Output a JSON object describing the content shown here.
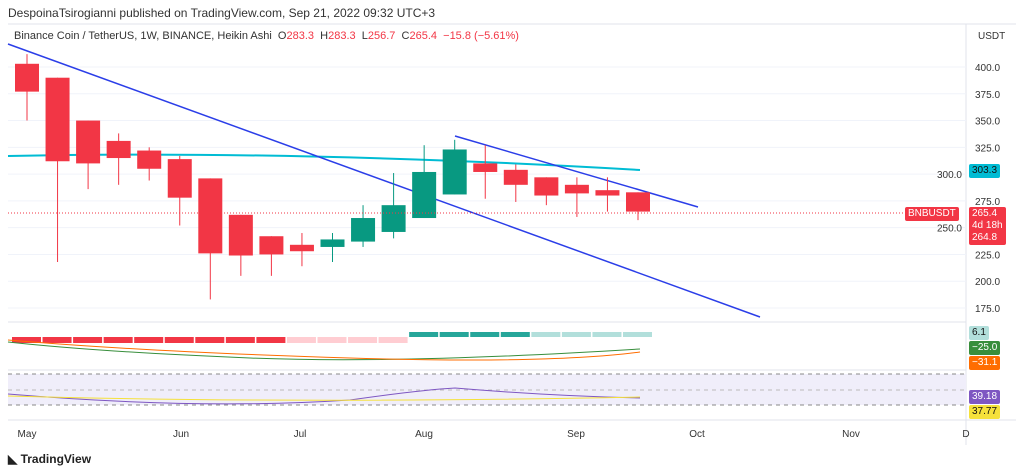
{
  "header": {
    "published": "DespoinaTsirogianni published on TradingView.com, Sep 21, 2022 09:32 UTC+3"
  },
  "legend": {
    "title": "Binance Coin / TetherUS, 1W, BINANCE, Heikin Ashi",
    "o_label": "O",
    "o": "283.3",
    "h_label": "H",
    "h": "283.3",
    "l_label": "L",
    "l": "256.7",
    "c_label": "C",
    "c": "265.4",
    "change": "−15.8 (−5.61%)"
  },
  "axis": {
    "currency": "USDT"
  },
  "badges": {
    "ma": "303.3",
    "symbol": "BNBUSDT",
    "price": "265.4",
    "countdown": "4d 18h",
    "price2": "264.8",
    "macd_hist": "6.1",
    "macd": "−25.0",
    "signal": "−31.1",
    "rsi": "39.18",
    "rsi_ma": "37.77"
  },
  "brand": "TradingView",
  "colors": {
    "up": "#089981",
    "down": "#f23645",
    "ma": "#00bcd4",
    "trend": "#2b3ee8"
  },
  "chart_data": {
    "type": "candlestick",
    "title": "Binance Coin / TetherUS, 1W, BINANCE, Heikin Ashi",
    "ylim": [
      150,
      425
    ],
    "yticks": [
      "400.0",
      "375.0",
      "350.0",
      "325.0",
      "300.0",
      "275.0",
      "250.0",
      "225.0",
      "200.0",
      "175.0"
    ],
    "xticks": [
      "May",
      "Jun",
      "Jul",
      "Aug",
      "Sep",
      "Oct",
      "Nov",
      "D"
    ],
    "candles": [
      [
        403,
        412,
        350,
        377
      ],
      [
        390,
        390,
        218,
        312
      ],
      [
        350,
        350,
        286,
        310
      ],
      [
        331,
        338,
        290,
        315
      ],
      [
        322,
        325,
        294,
        305
      ],
      [
        314,
        317,
        252,
        278
      ],
      [
        296,
        296,
        183,
        226
      ],
      [
        262,
        262,
        205,
        224
      ],
      [
        242,
        242,
        205,
        225
      ],
      [
        234,
        245,
        214,
        228
      ],
      [
        232,
        245,
        218,
        239
      ],
      [
        237,
        271,
        232,
        259
      ],
      [
        246,
        301,
        240,
        271
      ],
      [
        259,
        327,
        259,
        302
      ],
      [
        281,
        332,
        281,
        323
      ],
      [
        310,
        327,
        277,
        302
      ],
      [
        304,
        309,
        274,
        290
      ],
      [
        297,
        297,
        271,
        280
      ],
      [
        290,
        297,
        260,
        282
      ],
      [
        285,
        297,
        265,
        280
      ],
      [
        283,
        283,
        257,
        265
      ]
    ],
    "ma_value": 303.3,
    "last_price": 265.4
  }
}
